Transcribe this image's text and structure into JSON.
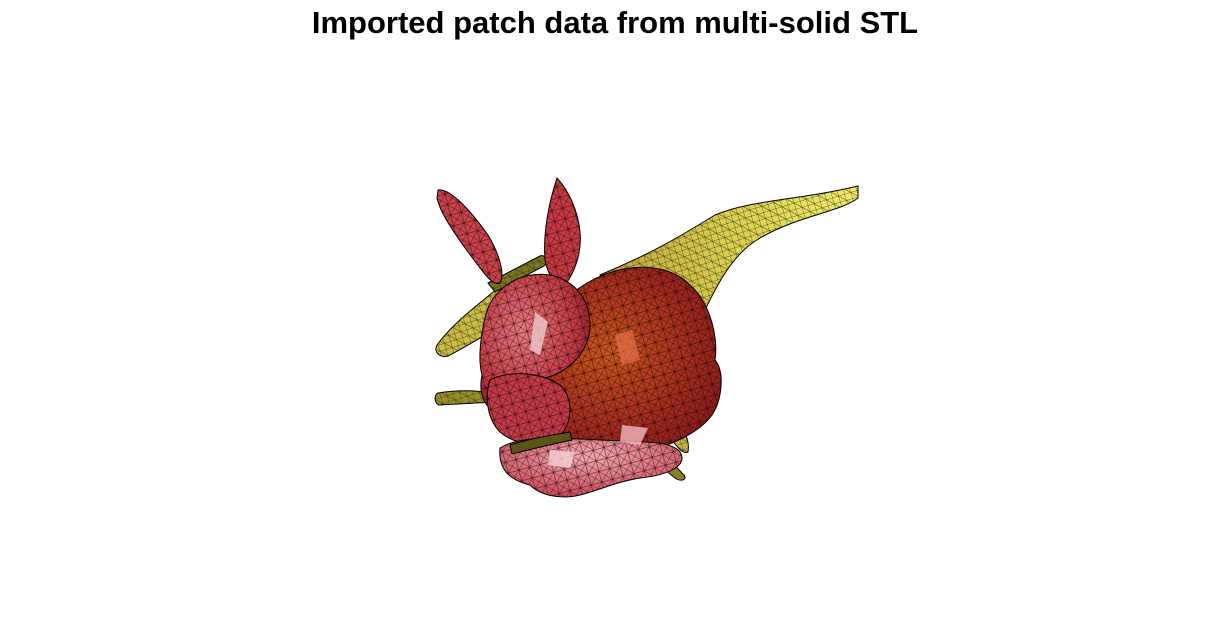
{
  "figure": {
    "title": "Imported patch data from multi-solid STL"
  },
  "scene": {
    "background": "#ffffff",
    "objects": [
      {
        "name": "bunny",
        "face_color": "#d9343a",
        "edge_color": "#000000"
      },
      {
        "name": "dinosaur",
        "face_color": "#e6e05a",
        "edge_color": "#000000"
      }
    ]
  }
}
